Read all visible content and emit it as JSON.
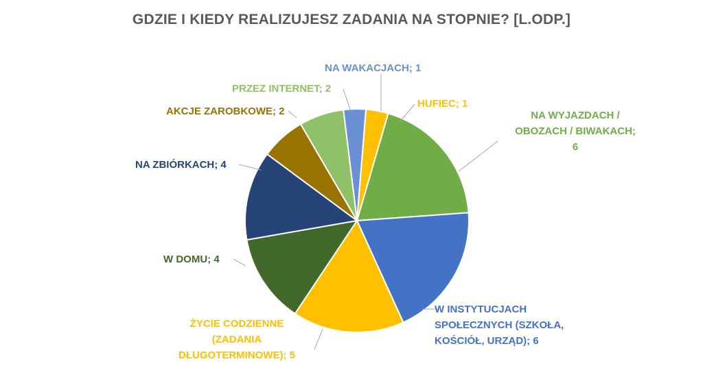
{
  "chart_data": {
    "type": "pie",
    "title": "GDZIE I KIEDY REALIZUJESZ ZADANIA NA STOPNIE? [L.ODP.]",
    "start_angle_deg": -7,
    "slices": [
      {
        "label": "NA WAKACJACH; 1",
        "lines": [
          "NA WAKACJACH; 1"
        ],
        "value": 1,
        "color": "#6A8FD4"
      },
      {
        "label": "HUFIEC; 1",
        "lines": [
          "HUFIEC; 1"
        ],
        "value": 1,
        "color": "#FFC000"
      },
      {
        "label": "NA WYJAZDACH / OBOZACH / BIWAKACH; 6",
        "lines": [
          "NA WYJAZDACH /",
          "OBOZACH / BIWAKACH;",
          "6"
        ],
        "value": 6,
        "color": "#70AD47"
      },
      {
        "label": "W INSTYTUCJACH SPOŁECZNYCH (SZKOŁA, KOŚCIÓŁ, URZĄD); 6",
        "lines": [
          "W INSTYTUCJACH",
          "SPOŁECZNYCH (SZKOŁA,",
          "KOŚCIÓŁ, URZĄD); 6"
        ],
        "value": 6,
        "color": "#4472C4"
      },
      {
        "label": "ŻYCIE CODZIENNE (ZADANIA DŁUGOTERMINOWE); 5",
        "lines": [
          "ŻYCIE CODZIENNE",
          "(ZADANIA",
          "DŁUGOTERMINOWE); 5"
        ],
        "value": 5,
        "color": "#FFC000"
      },
      {
        "label": "W DOMU; 4",
        "lines": [
          "W DOMU; 4"
        ],
        "value": 4,
        "color": "#43682B"
      },
      {
        "label": "NA ZBIÓRKACH; 4",
        "lines": [
          "NA ZBIÓRKACH; 4"
        ],
        "value": 4,
        "color": "#264478"
      },
      {
        "label": "AKCJE ZAROBKOWE; 2",
        "lines": [
          "AKCJE ZAROBKOWE; 2"
        ],
        "value": 2,
        "color": "#997300"
      },
      {
        "label": "PRZEZ INTERNET; 2",
        "lines": [
          "PRZEZ INTERNET; 2"
        ],
        "value": 2,
        "color": "#8FC168"
      }
    ],
    "label_colors": [
      "#6A8FD4",
      "#FFC000",
      "#70AD47",
      "#4472C4",
      "#FFC000",
      "#43682B",
      "#264478",
      "#997300",
      "#8FC168"
    ],
    "legend": "none"
  }
}
